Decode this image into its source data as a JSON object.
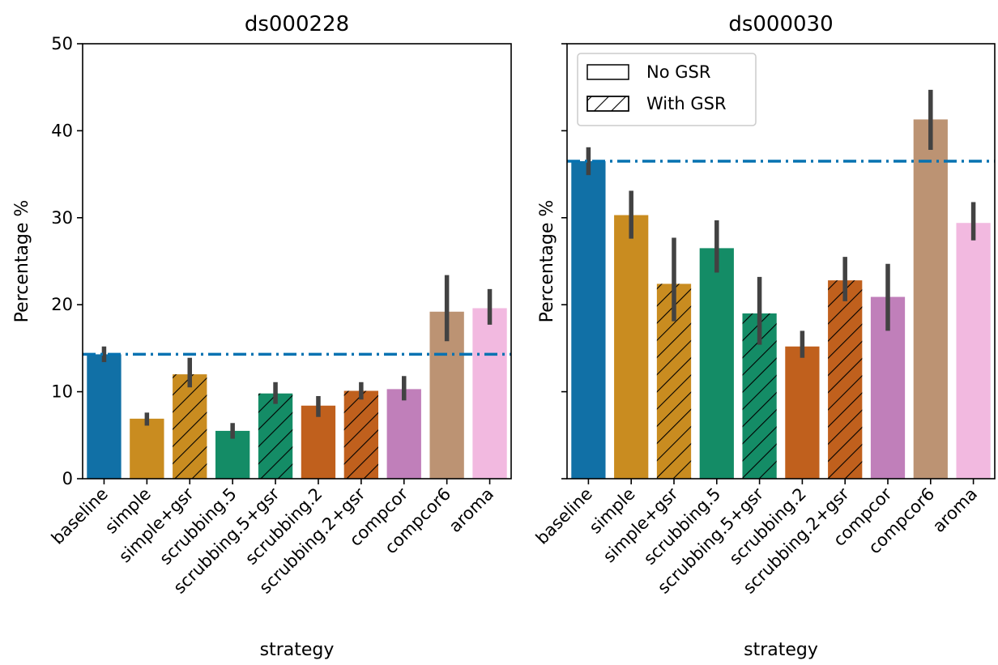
{
  "chart_data": [
    {
      "type": "bar",
      "title": "ds000228",
      "xlabel": "strategy",
      "ylabel": "Percentage %",
      "ylim": [
        0,
        50
      ],
      "yticks": [
        0,
        10,
        20,
        30,
        40,
        50
      ],
      "show_ytick_labels": true,
      "categories": [
        "baseline",
        "simple",
        "simple+gsr",
        "scrubbing.5",
        "scrubbing.5+gsr",
        "scrubbing.2",
        "scrubbing.2+gsr",
        "compcor",
        "compcor6",
        "aroma"
      ],
      "values": [
        14.3,
        6.9,
        12.0,
        5.5,
        9.8,
        8.4,
        10.1,
        10.3,
        19.2,
        19.6
      ],
      "ci_low": [
        13.4,
        6.1,
        10.5,
        4.6,
        8.6,
        7.1,
        9.1,
        9.0,
        15.8,
        17.7
      ],
      "ci_high": [
        15.2,
        7.6,
        13.9,
        6.4,
        11.1,
        9.5,
        11.1,
        11.8,
        23.4,
        21.8
      ],
      "gsr": [
        false,
        false,
        true,
        false,
        true,
        false,
        true,
        false,
        false,
        false
      ],
      "baseline_line": 14.3,
      "legend": null
    },
    {
      "type": "bar",
      "title": "ds000030",
      "xlabel": "strategy",
      "ylabel": "Percentage %",
      "ylim": [
        0,
        50
      ],
      "yticks": [
        0,
        10,
        20,
        30,
        40,
        50
      ],
      "show_ytick_labels": false,
      "categories": [
        "baseline",
        "simple",
        "simple+gsr",
        "scrubbing.5",
        "scrubbing.5+gsr",
        "scrubbing.2",
        "scrubbing.2+gsr",
        "compcor",
        "compcor6",
        "aroma"
      ],
      "values": [
        36.5,
        30.3,
        22.4,
        26.5,
        19.0,
        15.2,
        22.8,
        20.9,
        41.3,
        29.4
      ],
      "ci_low": [
        34.9,
        27.6,
        18.1,
        23.7,
        15.4,
        13.9,
        20.4,
        17.0,
        37.8,
        27.4
      ],
      "ci_high": [
        38.1,
        33.1,
        27.7,
        29.7,
        23.2,
        17.0,
        25.5,
        24.7,
        44.7,
        31.8
      ],
      "gsr": [
        false,
        false,
        true,
        false,
        true,
        false,
        true,
        false,
        false,
        false
      ],
      "baseline_line": 36.5,
      "legend": {
        "placement": "upper-left",
        "entries": [
          {
            "label": "No GSR",
            "hatch": false
          },
          {
            "label": "With GSR",
            "hatch": true
          }
        ]
      }
    }
  ],
  "colors": [
    "#1170a6",
    "#c98c20",
    "#c98c20",
    "#148c66",
    "#148c66",
    "#c0601d",
    "#c0601d",
    "#c07fba",
    "#bc9373",
    "#f2b9e0"
  ],
  "baseline_line_color": "#0672b1",
  "errorbar_color": "#424242"
}
